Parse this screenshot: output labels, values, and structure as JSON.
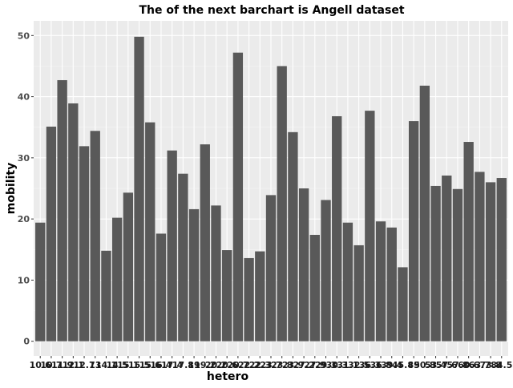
{
  "chart_data": {
    "type": "bar",
    "title": "The of the next barchart is Angell dataset",
    "xlabel": "hetero",
    "ylabel": "mobility",
    "ylim": [
      -2.4,
      52.4
    ],
    "yticks": [
      0,
      10,
      20,
      30,
      40,
      50
    ],
    "grid": true,
    "legend": "none",
    "categories": [
      "10.6",
      "10.7",
      "11.9",
      "12.1",
      "12.7",
      "13",
      "14.1",
      "14.5",
      "15.1",
      "15.5",
      "15.6",
      "16.4",
      "17.4",
      "17.8",
      "19",
      "19.2",
      "20.2",
      "20.6",
      "20.7",
      "22.2",
      "22.3",
      "23.7",
      "23.8",
      "23.9",
      "27.2",
      "27.9",
      "29.3",
      "30.3",
      "31.1",
      "32.5",
      "36.3",
      "36.8",
      "39.4",
      "45.8",
      "49",
      "50.8",
      "53.4",
      "57.6",
      "57.8",
      "60.6",
      "63.7",
      "73.8",
      "84.5"
    ],
    "values": [
      19.4,
      35.1,
      42.7,
      38.9,
      31.9,
      34.4,
      14.8,
      20.2,
      24.3,
      49.8,
      35.8,
      17.6,
      31.2,
      27.4,
      21.6,
      32.2,
      22.2,
      14.9,
      47.2,
      13.6,
      14.7,
      23.9,
      45.0,
      34.2,
      25.0,
      17.4,
      23.1,
      36.8,
      19.4,
      15.7,
      37.7,
      19.6,
      18.6,
      12.1,
      36.0,
      41.8,
      25.4,
      27.1,
      24.9,
      32.6,
      27.7,
      26.0,
      26.7
    ],
    "colors": {
      "panel_background": "#ebebeb",
      "grid_major": "#ffffff",
      "grid_minor": "#f5f5f5",
      "bar_fill": "#595959",
      "text": "#1a1a1a",
      "tick_text": "#4d4d4d"
    }
  }
}
